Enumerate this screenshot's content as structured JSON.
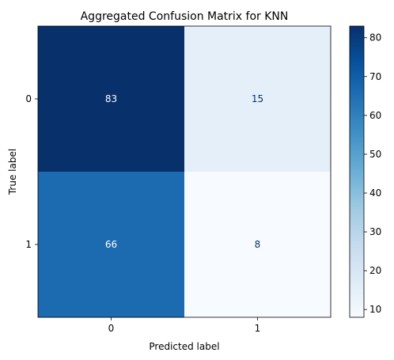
{
  "chart_data": {
    "type": "heatmap",
    "title": "Aggregated Confusion Matrix for KNN",
    "xlabel": "Predicted label",
    "ylabel": "True label",
    "x_categories": [
      "0",
      "1"
    ],
    "y_categories": [
      "0",
      "1"
    ],
    "values": [
      [
        83,
        15
      ],
      [
        66,
        8
      ]
    ],
    "colormap": "Blues",
    "colorbar": {
      "min": 8,
      "max": 83,
      "ticks": [
        10,
        20,
        30,
        40,
        50,
        60,
        70,
        80
      ]
    },
    "grid": false,
    "colors": {
      "low": "#f7fbff",
      "high": "#08306b",
      "text_on_dark": "#ffffff",
      "text_on_light": "#08306b"
    }
  }
}
